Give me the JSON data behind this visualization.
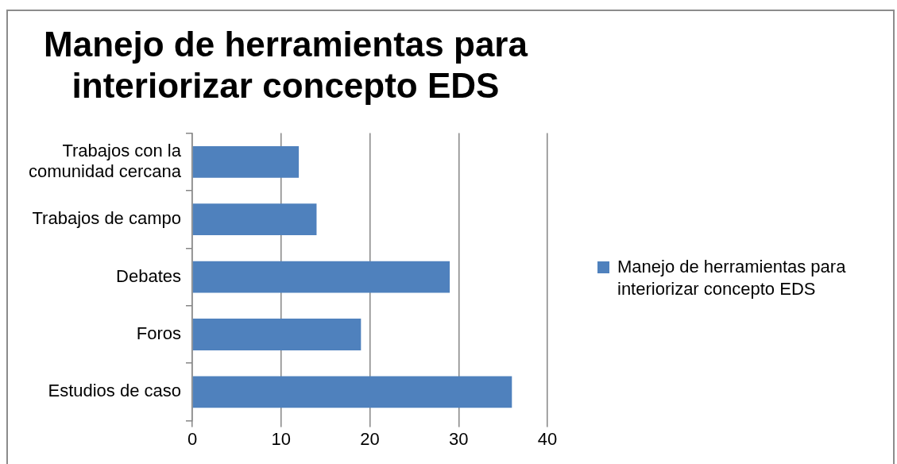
{
  "chart_data": {
    "type": "bar",
    "orientation": "horizontal",
    "title": "Manejo de herramientas para interiorizar concepto EDS",
    "categories": [
      "Trabajos con la comunidad cercana",
      "Trabajos de campo",
      "Debates",
      "Foros",
      "Estudios de caso"
    ],
    "series": [
      {
        "name": "Manejo de herramientas para interiorizar concepto EDS",
        "color": "#4f81bd",
        "values": [
          12,
          14,
          29,
          19,
          36
        ]
      }
    ],
    "xlim": [
      0,
      40
    ],
    "xticks": [
      0,
      10,
      20,
      30,
      40
    ],
    "grid": "x",
    "legend": "right"
  }
}
